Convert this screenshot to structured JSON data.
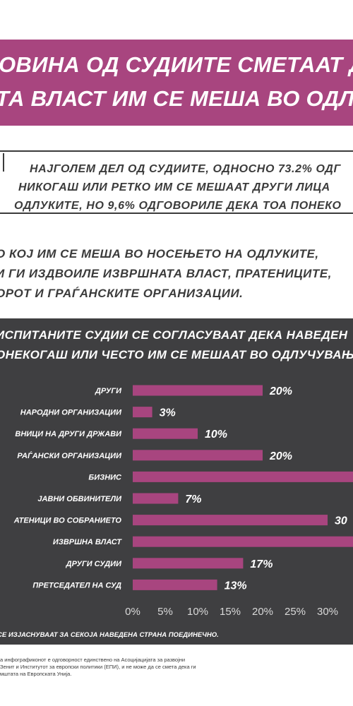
{
  "banner": {
    "line1": "ОВИНА ОД СУДИИТЕ СМЕТААТ Д",
    "line2": "ТА ВЛАСТ ИМ СЕ МЕША ВО ОДЛУ"
  },
  "note": {
    "line1": "НАЈГОЛЕМ ДЕЛ ОД СУДИИТЕ, ОДНОСНО 73.2% ОДГ",
    "line2": "НИКОГАШ ИЛИ РЕТКО ИМ СЕ МЕШААТ ДРУГИ ЛИЦА",
    "line3": "ОДЛУКИТЕ, НО 9,6% ОДГОВОРИЛЕ ДЕКА ТОА ПОНЕКО"
  },
  "paragraph": {
    "line1": "О КОЈ ИМ СЕ МЕША ВО НОСЕЊЕТО НА ОДЛУКИТЕ,",
    "line2": "И ГИ ИЗДВОИЛЕ ИЗВРШНАТА ВЛАСТ, ПРАТЕНИЦИТЕ,",
    "line3": "ОРОТ И ГРАЃАНСКИТЕ ОРГАНИЗАЦИИ."
  },
  "panel": {
    "title1": "ИСПИТАНИТЕ СУДИИ СЕ СОГЛАСУВААТ ДЕКА НАВЕДЕН",
    "title2": "ОНЕКОГАШ ИЛИ ЧЕСТО ИМ СЕ МЕШААТ ВО ОДЛУЧУВАЊ",
    "footnote": "СЕ ИЗЈАСНУВААТ ЗА СЕКОЈА НАВЕДЕНА СТРАНА ПОЕДИНЕЧНО."
  },
  "disclaimer": {
    "line1": "а инфографиконот е одговорност единствено на Асоцијацијата за развојни",
    "line2": "Зенит и Институтот за европски политики (ЕПИ), и не може да се смета дека ги",
    "line3": "мштата на Европската Унија."
  },
  "colors": {
    "accent": "#a8457f",
    "panel_bg": "#3f3f41",
    "text_dark": "#3b3b3b"
  },
  "chart_data": {
    "type": "bar",
    "orientation": "horizontal",
    "categories": [
      "ДРУГИ",
      "НАРОДНИ ОРГАНИЗАЦИИ",
      "ВНИЦИ НА ДРУГИ ДРЖАВИ",
      "РАЃАНСКИ ОРГАНИЗАЦИИ",
      "БИЗНИС",
      "ЈАВНИ ОБВИНИТЕЛИ",
      "АТЕНИЦИ ВО СОБРАНИЕТО",
      "ИЗВРШНА ВЛАСТ",
      "ДРУГИ СУДИИ",
      "ПРЕТСЕДАТЕЛ НА СУД"
    ],
    "values": [
      20,
      3,
      10,
      20,
      34,
      7,
      30,
      36,
      17,
      13
    ],
    "value_labels": [
      "20%",
      "3%",
      "10%",
      "20%",
      "",
      "7%",
      "30",
      "",
      "17%",
      "13%"
    ],
    "x_ticks": [
      "0%",
      "5%",
      "10%",
      "15%",
      "20%",
      "25%",
      "30%"
    ],
    "xlim": [
      0,
      35
    ],
    "grid": false,
    "bar_color": "#a8457f"
  }
}
